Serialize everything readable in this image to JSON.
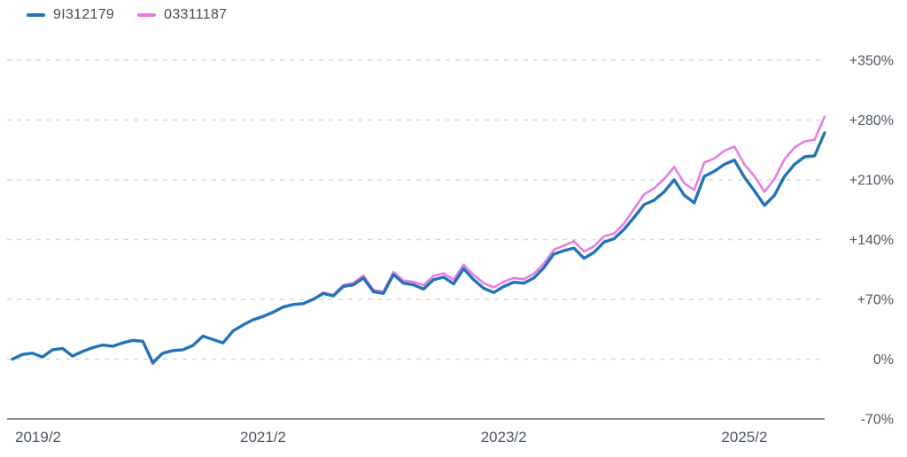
{
  "legend": {
    "series": [
      {
        "label": "9I312179",
        "color": "#2273b6"
      },
      {
        "label": "03311187",
        "color": "#e77de4"
      }
    ]
  },
  "chart_data": {
    "type": "line",
    "title": "",
    "xlabel": "",
    "ylabel": "",
    "x_unit": "month",
    "start_month": "2019/1",
    "end_month": "2025/10",
    "ylim": [
      -70,
      350
    ],
    "grid": "horizontal-dashed",
    "legend_position": "top-left",
    "y_ticks": [
      {
        "label": "+350%",
        "pct": 350
      },
      {
        "label": "+280%",
        "pct": 280
      },
      {
        "label": "+210%",
        "pct": 210
      },
      {
        "label": "+140%",
        "pct": 140
      },
      {
        "label": "+70%",
        "pct": 70
      },
      {
        "label": "0%",
        "pct": 0
      },
      {
        "label": "-70%",
        "pct": -70
      }
    ],
    "x_ticks": [
      {
        "label": "2019/2",
        "month_index": 1
      },
      {
        "label": "2021/2",
        "month_index": 25
      },
      {
        "label": "2023/2",
        "month_index": 49
      },
      {
        "label": "2025/2",
        "month_index": 73
      }
    ],
    "series": [
      {
        "name": "9I312179",
        "color": "#2273b6",
        "line_width": 3.4,
        "values": [
          0,
          5.5,
          7,
          2.5,
          11,
          12.5,
          3.5,
          9,
          13.5,
          16.5,
          15,
          19,
          22,
          21,
          -4,
          7,
          10,
          11,
          16,
          27,
          23,
          19,
          33,
          40,
          46,
          50,
          55,
          61,
          64,
          65,
          70,
          77,
          74,
          85,
          87,
          95,
          79,
          77,
          99,
          89,
          87,
          82,
          93,
          96,
          88,
          106,
          93,
          83,
          78,
          85,
          90,
          89,
          95,
          107,
          123,
          127,
          130,
          118,
          125,
          137,
          141,
          152,
          166,
          181,
          186,
          196,
          210,
          192,
          183,
          214,
          220,
          228,
          233,
          213,
          197,
          180,
          192,
          214,
          228,
          237,
          238,
          265
        ]
      },
      {
        "name": "03311187",
        "color": "#e77de4",
        "line_width": 2.6,
        "values": [
          0,
          5.5,
          7,
          2.5,
          11,
          12.5,
          3.5,
          9,
          13.5,
          16.5,
          15,
          19,
          22,
          21,
          -6,
          7,
          10,
          11,
          16,
          27,
          23,
          19,
          33,
          40,
          46,
          50,
          55,
          61,
          64,
          65,
          70,
          78,
          75,
          87,
          89,
          98,
          81,
          79,
          102,
          92,
          90.5,
          86.5,
          97.5,
          100.5,
          93,
          110.5,
          98.5,
          89,
          84,
          90.5,
          95,
          93.5,
          100,
          112,
          128,
          133,
          138,
          126,
          132,
          144,
          147,
          159,
          176,
          193,
          200,
          211,
          225,
          206,
          198,
          230,
          235,
          244,
          249,
          228,
          214,
          196,
          211,
          234,
          248,
          255,
          257,
          284
        ]
      }
    ],
    "grid_color": "#d6d9dc",
    "baseline_color": "#606a73",
    "axis_label_color": "#4d5763"
  }
}
